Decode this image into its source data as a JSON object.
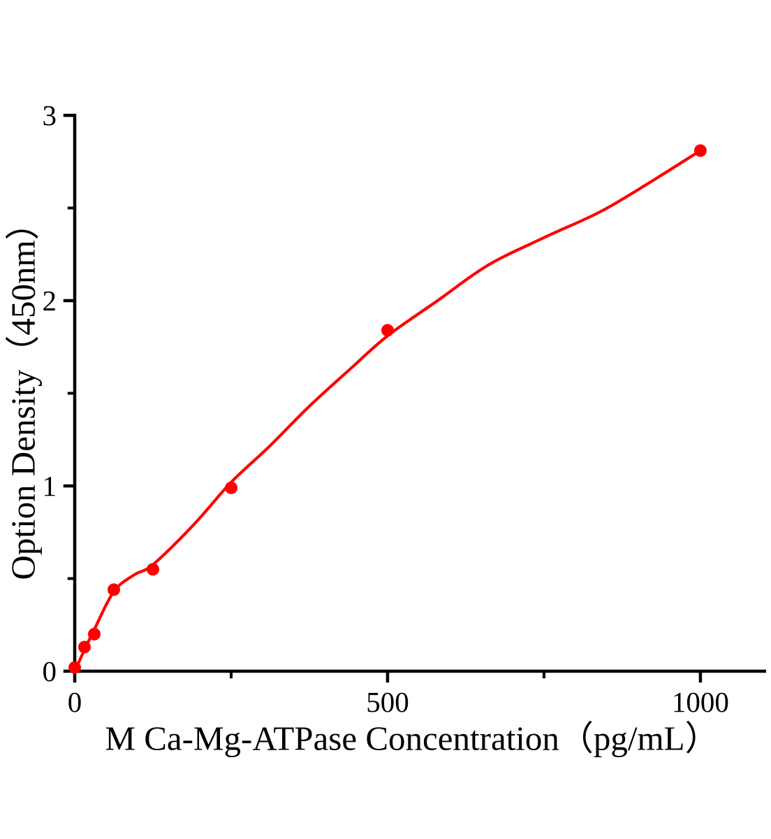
{
  "figure": {
    "background_color": "#ffffff",
    "axis_color": "#000000",
    "series_color": "#ff0000"
  },
  "chart_data": {
    "type": "scatter",
    "title": "",
    "xlabel": "M Ca-Mg-ATPase Concentration（pg/mL）",
    "ylabel": "Option Density（450nm）",
    "xlim": [
      0,
      1105
    ],
    "ylim": [
      0,
      3
    ],
    "x_major_ticks": [
      0,
      500,
      1000
    ],
    "x_minor_ticks": [
      250,
      750
    ],
    "y_major_ticks": [
      0,
      1,
      2,
      3
    ],
    "y_minor_ticks": [
      0.5,
      1.5,
      2.5
    ],
    "grid": false,
    "legend": null,
    "series": [
      {
        "name": "standard-points",
        "type": "scatter",
        "color": "#ff0000",
        "marker": "circle",
        "points": [
          [
            0,
            0.02
          ],
          [
            15.6,
            0.13
          ],
          [
            31.2,
            0.2
          ],
          [
            62.5,
            0.44
          ],
          [
            125,
            0.55
          ],
          [
            250,
            0.99
          ],
          [
            500,
            1.84
          ],
          [
            1000,
            2.81
          ]
        ]
      },
      {
        "name": "fit-curve",
        "type": "line",
        "color": "#ff0000",
        "points": [
          [
            0,
            0.0
          ],
          [
            15.6,
            0.115
          ],
          [
            31.2,
            0.225
          ],
          [
            62.5,
            0.43
          ],
          [
            95,
            0.52
          ],
          [
            125,
            0.575
          ],
          [
            190,
            0.79
          ],
          [
            250,
            1.02
          ],
          [
            310,
            1.21
          ],
          [
            375,
            1.43
          ],
          [
            440,
            1.63
          ],
          [
            500,
            1.81
          ],
          [
            580,
            2.0
          ],
          [
            660,
            2.19
          ],
          [
            750,
            2.34
          ],
          [
            840,
            2.48
          ],
          [
            920,
            2.64
          ],
          [
            1000,
            2.81
          ]
        ]
      }
    ]
  }
}
